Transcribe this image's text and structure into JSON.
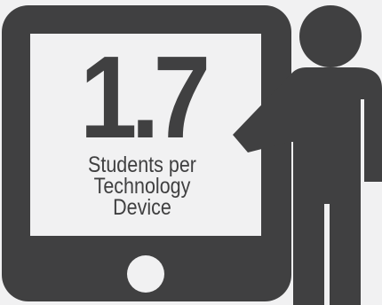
{
  "stat": {
    "value": "1.7",
    "caption_lines": [
      "Students per",
      "Technology",
      "Device"
    ]
  },
  "colors": {
    "background": "#f1f1f2",
    "icon": "#404041",
    "screen": "#f1f1f2"
  },
  "icons": {
    "tablet": "tablet-icon",
    "person": "person-pointing-icon"
  }
}
